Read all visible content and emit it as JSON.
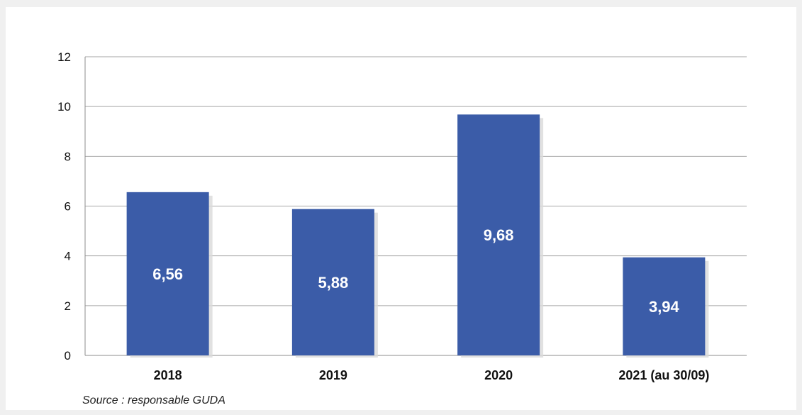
{
  "colors": {
    "bar": "#3b5ca8",
    "bar_shadow": "#d9d9d9",
    "grid": "#a6a6a6",
    "axis": "#8c8c8c"
  },
  "chart_data": {
    "type": "bar",
    "categories": [
      "2018",
      "2019",
      "2020",
      "2021 (au 30/09)"
    ],
    "values": [
      6.56,
      5.88,
      9.68,
      3.94
    ],
    "data_labels": [
      "6,56",
      "5,88",
      "9,68",
      "3,94"
    ],
    "title": "",
    "xlabel": "",
    "ylabel": "",
    "ylim": [
      0,
      12
    ],
    "yticks": [
      0,
      2,
      4,
      6,
      8,
      10,
      12
    ],
    "grid": true,
    "legend": "none"
  },
  "source": "Source : responsable GUDA"
}
